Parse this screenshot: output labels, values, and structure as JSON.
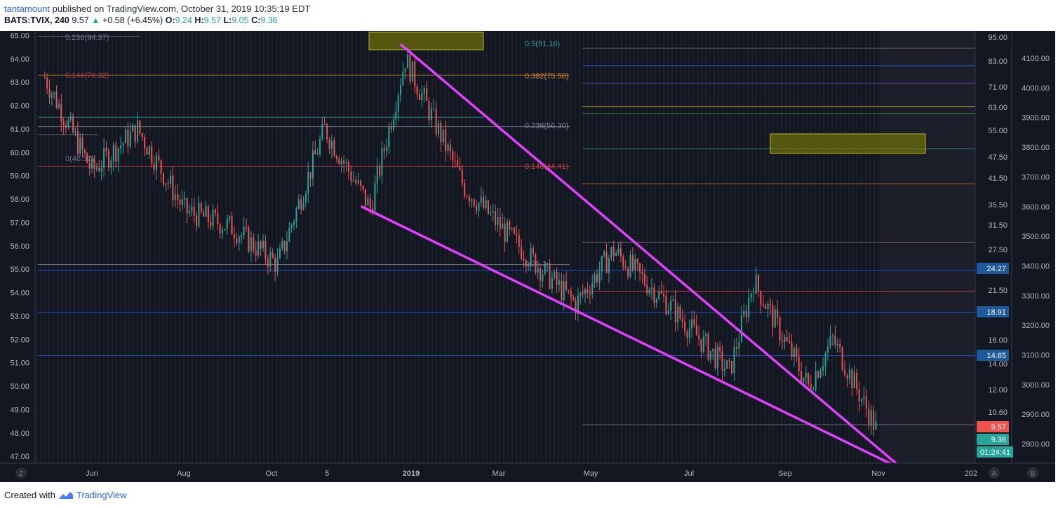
{
  "header": {
    "publisher": "tantamount",
    "published_text": "published on TradingView.com, October 31, 2019 10:35:19 EDT",
    "symbol": "BATS:TVIX, 240",
    "last": "9.57",
    "change": "+0.58 (+6.45%)",
    "open_label": "O:",
    "open": "9.24",
    "high_label": "H:",
    "high": "9.57",
    "low_label": "L:",
    "low": "9.05",
    "close_label": "C:",
    "close": "9.36"
  },
  "footer": {
    "created_with": "Created with",
    "brand": "TradingView"
  },
  "colors": {
    "background": "#131722",
    "grid": "#2a2e39",
    "candle_up": "#26a69a",
    "candle_down": "#ef5350",
    "trendline": "#e040fb",
    "zone_fill": "#808000",
    "zone_stroke": "#b5b52a",
    "price_tag_blue": "#1e5a9a",
    "price_tag_red": "#ef5350",
    "price_tag_green": "#26a69a"
  },
  "chart_data": {
    "type": "candlestick",
    "symbol": "BATS:TVIX",
    "interval": "240",
    "x_axis_labels": [
      "Jun",
      "Aug",
      "Oct",
      "5",
      "2019",
      "Mar",
      "May",
      "Jul",
      "Sep",
      "Nov",
      "202"
    ],
    "left_axis": {
      "labels": [
        "65.00",
        "64.00",
        "63.00",
        "62.00",
        "61.00",
        "60.00",
        "59.00",
        "58.00",
        "57.00",
        "56.00",
        "55.00",
        "54.00",
        "53.00",
        "52.00",
        "51.00",
        "50.00",
        "49.00",
        "48.00",
        "47.00"
      ],
      "range": [
        46.75,
        65.1
      ]
    },
    "right_axis_log": {
      "labels": [
        "95.00",
        "83.00",
        "71.00",
        "63.00",
        "55.00",
        "47.50",
        "41.50",
        "35.50",
        "31.50",
        "27.50",
        "24.27",
        "21.50",
        "18.91",
        "16.00",
        "14.65",
        "14.00",
        "12.00",
        "10.60",
        "9.57",
        "9.36"
      ],
      "log_scale": true
    },
    "far_right_axis": {
      "labels": [
        "4100.00",
        "4000.00",
        "3900.00",
        "3800.00",
        "3700.00",
        "3600.00",
        "3500.00",
        "3400.00",
        "3300.00",
        "3200.00",
        "3100.00",
        "3000.00",
        "2900.00",
        "2800.00"
      ],
      "range": [
        2770,
        4170
      ]
    },
    "price_tags": [
      {
        "text": "24.27",
        "color": "blue"
      },
      {
        "text": "18.91",
        "color": "blue"
      },
      {
        "text": "14.65",
        "color": "blue"
      },
      {
        "text": "9.57",
        "color": "red"
      },
      {
        "text": "9.36",
        "color": "green"
      },
      {
        "text": "01:24:41",
        "color": "green"
      }
    ],
    "fib_labels": [
      {
        "text": "0.236(94.37)",
        "color": "#7b6f8c"
      },
      {
        "text": "0.146(76.32)",
        "color": "#b23b3b"
      },
      {
        "text": "0(46.32)",
        "color": "#7b6f8c"
      },
      {
        "text": "0.5(91.16)",
        "color": "#3aa398"
      },
      {
        "text": "0.382(75.58)",
        "color": "#d08a2e"
      },
      {
        "text": "0.236(56.30)",
        "color": "#8e8398"
      },
      {
        "text": "0.146(44.41)",
        "color": "#c23b3b"
      },
      {
        "text": "0(25.1",
        "color": "#8e8398"
      }
    ],
    "key_points": [
      {
        "date": "2018-05-01",
        "close": 63.2
      },
      {
        "date": "2018-06-01",
        "close": 59.2
      },
      {
        "date": "2018-07-01",
        "close": 61.0
      },
      {
        "date": "2018-08-01",
        "close": 57.5
      },
      {
        "date": "2018-09-01",
        "close": 56.8
      },
      {
        "date": "2018-10-01",
        "close": 55.2
      },
      {
        "date": "2018-11-01",
        "close": 61.0
      },
      {
        "date": "2018-12-01",
        "close": 57.6
      },
      {
        "date": "2018-12-24",
        "close": 64.0
      },
      {
        "date": "2019-02-01",
        "close": 58.5
      },
      {
        "date": "2019-03-01",
        "close": 56.5
      },
      {
        "date": "2019-04-15",
        "close": 53.5
      },
      {
        "date": "2019-05-10",
        "close": 55.8
      },
      {
        "date": "2019-06-15",
        "close": 53.5
      },
      {
        "date": "2019-07-25",
        "close": 50.6
      },
      {
        "date": "2019-08-10",
        "close": 54.5
      },
      {
        "date": "2019-09-15",
        "close": 50.0
      },
      {
        "date": "2019-10-01",
        "close": 52.0
      },
      {
        "date": "2019-10-31",
        "close": 48.0
      }
    ]
  },
  "scale_buttons": {
    "z": "Z",
    "a": "A",
    "b": "B"
  }
}
